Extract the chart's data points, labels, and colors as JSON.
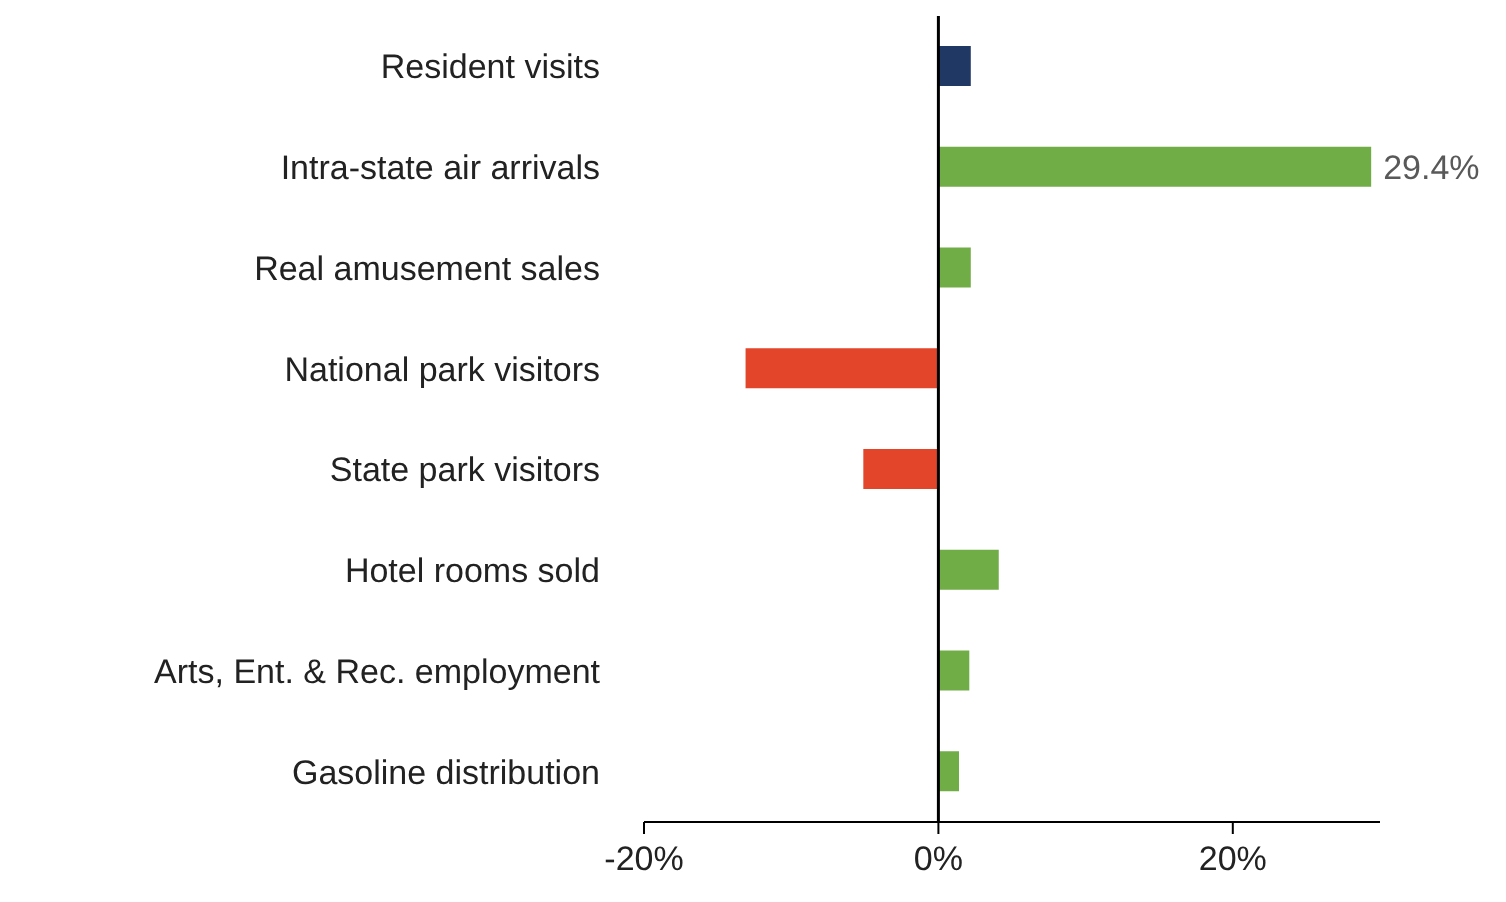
{
  "chart_data": {
    "type": "bar",
    "orientation": "horizontal",
    "categories": [
      "Resident visits",
      "Intra-state air arrivals",
      "Real amusement sales",
      "National park visitors",
      "State park visitors",
      "Hotel rooms sold",
      "Arts, Ent. & Rec. employment",
      "Gasoline distribution"
    ],
    "values": [
      2.2,
      29.4,
      2.2,
      -13.1,
      -5.1,
      4.1,
      2.1,
      1.4
    ],
    "colors": [
      "#1f3864",
      "#70ad47",
      "#70ad47",
      "#e2452a",
      "#e2452a",
      "#70ad47",
      "#70ad47",
      "#70ad47"
    ],
    "value_labels": [
      null,
      "29.4%",
      null,
      null,
      null,
      null,
      null,
      null
    ],
    "xlim": [
      -20,
      30
    ],
    "xticks": [
      {
        "value": -20,
        "label": "-20%"
      },
      {
        "value": 0,
        "label": "0%"
      },
      {
        "value": 20,
        "label": "20%"
      }
    ],
    "ref_lines": [
      {
        "axis": "x",
        "value": 0,
        "color": "#000000"
      }
    ],
    "grid": false,
    "legend": false
  }
}
